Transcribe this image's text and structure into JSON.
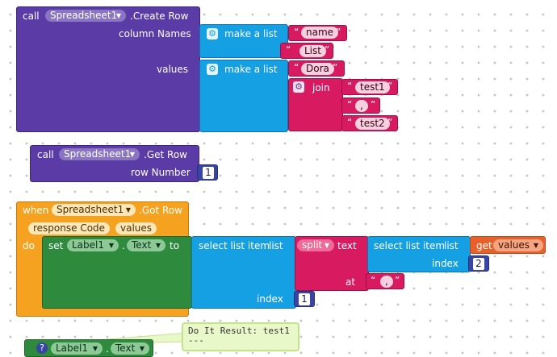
{
  "create_row": {
    "call": "call",
    "component": "Spreadsheet1",
    "method": ".Create Row",
    "param_column_names": "column Names",
    "param_values": "values",
    "make_a_list": "make a list",
    "col_name": "name",
    "col_list": "List",
    "val_dora": "Dora",
    "join": "join",
    "join_a": "test1",
    "join_b": ",",
    "join_c": "test2"
  },
  "get_row": {
    "call": "call",
    "component": "Spreadsheet1",
    "method": ".Get Row",
    "param_row_number": "row Number",
    "row_number": "1"
  },
  "got_row": {
    "when": "when",
    "component": "Spreadsheet1",
    "event": ".Got Row",
    "param_response_code": "response Code",
    "param_values": "values",
    "do": "do",
    "set": "set",
    "target_component": "Label1",
    "dot": ".",
    "property": "Text",
    "to": "to",
    "select_list_item": "select list item",
    "list": "list",
    "index": "index",
    "split": "split",
    "text": "text",
    "at": "at",
    "separator": ",",
    "get": "get",
    "get_var": "values",
    "inner_index": "2",
    "outer_index": "1"
  },
  "label_block": {
    "component": "Label1",
    "dot": ".",
    "property": "Text",
    "help_mark": "?"
  },
  "do_it_result": {
    "line1": "Do It Result: test1",
    "line2": "---"
  },
  "colors": {
    "component_purple": "#5b3ca6",
    "list_blue": "#16a0e4",
    "text_pink": "#d81b60",
    "event_orange": "#f4a21f",
    "setter_green": "#2e8a3d",
    "variable_orange": "#e8612a",
    "math_navy": "#3a45a3"
  }
}
